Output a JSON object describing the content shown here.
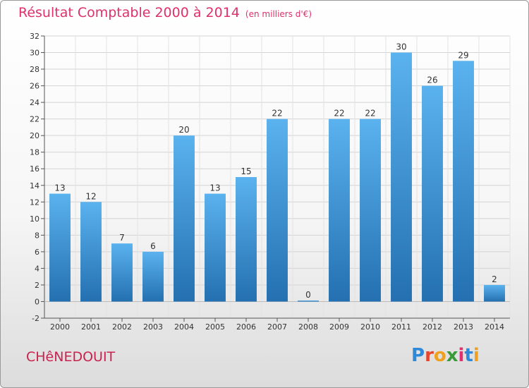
{
  "title": "Résultat Comptable 2000 à 2014",
  "subtitle": "(en milliers d'€)",
  "commune": "CHêNEDOUIT",
  "logo": {
    "letters": [
      "P",
      "r",
      "o",
      "x",
      "i",
      "t",
      "i"
    ],
    "colors": [
      "#2e8ad8",
      "#e8442c",
      "#f0a020",
      "#3a9a3a",
      "#e03070",
      "#2e8ad8",
      "#f0a020"
    ]
  },
  "colors": {
    "bar": "#3a8fd8",
    "bar_light": "#5ab2ee",
    "bar_dark": "#2470b0",
    "title": "#e0306a",
    "commune": "#c8234e"
  },
  "chart_data": {
    "type": "bar",
    "categories": [
      "2000",
      "2001",
      "2002",
      "2003",
      "2004",
      "2005",
      "2006",
      "2007",
      "2008",
      "2009",
      "2010",
      "2011",
      "2012",
      "2013",
      "2014"
    ],
    "values": [
      13,
      12,
      7,
      6,
      20,
      13,
      15,
      22,
      0,
      22,
      22,
      30,
      26,
      29,
      2
    ],
    "data_labels": [
      "13",
      "12",
      "7",
      "6",
      "20",
      "13",
      "15",
      "22",
      "0",
      "22",
      "22",
      "30",
      "26",
      "29",
      "2"
    ],
    "ylim": [
      -2,
      32
    ],
    "yticks": [
      "-2",
      "0",
      "2",
      "4",
      "6",
      "8",
      "10",
      "12",
      "14",
      "16",
      "18",
      "20",
      "22",
      "24",
      "26",
      "28",
      "30",
      "32"
    ],
    "grid": true,
    "legend": "none",
    "xlabel": "",
    "ylabel": ""
  }
}
